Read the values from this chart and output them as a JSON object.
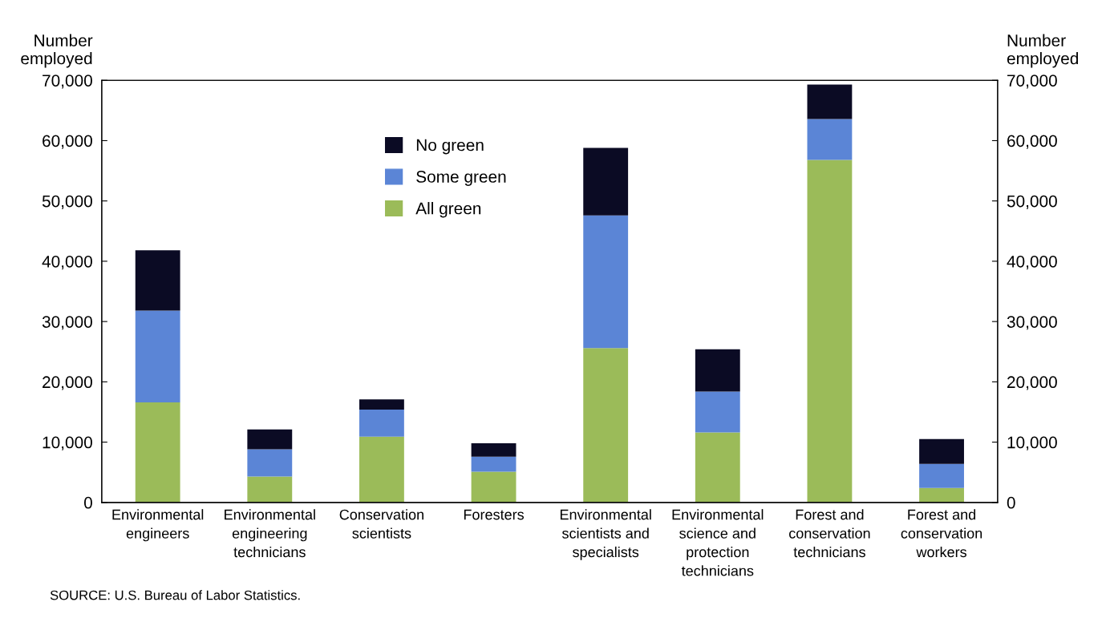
{
  "chart_data": {
    "type": "bar",
    "stacked": true,
    "ylabel": "Number\nemployed",
    "y2label": "Number\nemployed",
    "categories": [
      "Environmental\nengineers",
      "Environmental\nengineering\ntechnicians",
      "Conservation\nscientists",
      "Foresters",
      "Environmental\nscientists and\nspecialists",
      "Environmental\nscience and\nprotection\ntechnicians",
      "Forest and\nconservation\ntechnicians",
      "Forest and\nconservation\nworkers"
    ],
    "series": [
      {
        "name": "All green",
        "color": "#9bbb59",
        "values": [
          16600,
          4300,
          10900,
          5100,
          25600,
          11600,
          56800,
          2400
        ]
      },
      {
        "name": "Some green",
        "color": "#5b85d6",
        "values": [
          15200,
          4500,
          4500,
          2500,
          22000,
          6800,
          6800,
          4000
        ]
      },
      {
        "name": "No green",
        "color": "#0b0b24",
        "values": [
          10000,
          3300,
          1700,
          2200,
          11200,
          7000,
          5700,
          4100
        ]
      }
    ],
    "ylim": [
      0,
      70000
    ],
    "yticks": [
      0,
      {
        "value": 10000,
        "label": "10,000"
      },
      {
        "value": 20000,
        "label": "20,000"
      },
      {
        "value": 30000,
        "label": "30,000"
      },
      {
        "value": 40000,
        "label": "40,000"
      },
      {
        "value": 50000,
        "label": "50,000"
      },
      {
        "value": 60000,
        "label": "60,000"
      },
      {
        "value": 70000,
        "label": "70,000"
      }
    ],
    "y2lim": [
      0,
      70000
    ],
    "y2ticks": [
      0,
      {
        "value": 10000,
        "label": "10,000"
      },
      {
        "value": 20000,
        "label": "20,000"
      },
      {
        "value": 30000,
        "label": "30,000"
      },
      {
        "value": 40000,
        "label": "40,000"
      },
      {
        "value": 50000,
        "label": "50,000"
      },
      {
        "value": 60000,
        "label": "60,000"
      },
      {
        "value": 70000,
        "label": "70,000"
      }
    ],
    "legend": "top left",
    "grid": false,
    "annotations": [
      "SOURCE: U.S. Bureau of Labor Statistics."
    ]
  }
}
